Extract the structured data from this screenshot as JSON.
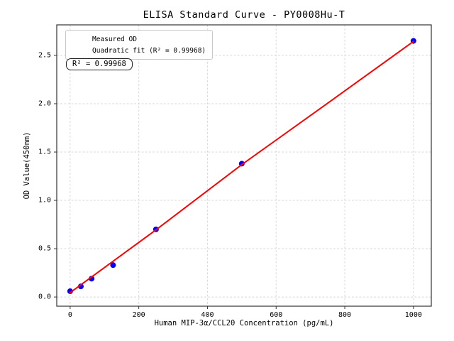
{
  "chart_data": {
    "type": "scatter",
    "title": "ELISA Standard Curve - PY0008Hu-T",
    "xlabel": "Human MIP-3α/CCL20 Concentration (pg/mL)",
    "ylabel": "OD Value(450nm)",
    "x_ticks": [
      0,
      200,
      400,
      600,
      800,
      1000
    ],
    "y_ticks": [
      0.0,
      0.5,
      1.0,
      1.5,
      2.0,
      2.5
    ],
    "xlim": [
      -39,
      1052
    ],
    "ylim": [
      -0.095,
      2.816
    ],
    "grid": true,
    "grid_color": "#d8d8d8",
    "axis_color": "#333333",
    "legend": {
      "position": "upper-left",
      "entries": [
        {
          "label": "Measured OD",
          "marker": "circle",
          "color": "#0000ff"
        },
        {
          "label": "Quadratic fit (R² = 0.99968)",
          "marker": "line",
          "color": "#ff0000"
        }
      ]
    },
    "annotation": "R² = 0.99968",
    "series": [
      {
        "name": "Measured OD",
        "type": "scatter",
        "color": "#0000ff",
        "points": [
          [
            0,
            0.06
          ],
          [
            31.2,
            0.11
          ],
          [
            62.5,
            0.19
          ],
          [
            125,
            0.33
          ],
          [
            250,
            0.7
          ],
          [
            500,
            1.38
          ],
          [
            1000,
            2.65
          ]
        ]
      },
      {
        "name": "Quadratic fit",
        "type": "line",
        "color": "#ff0000",
        "points": [
          [
            0,
            0.045
          ],
          [
            250,
            0.695
          ],
          [
            500,
            1.37
          ],
          [
            750,
            2.005
          ],
          [
            1000,
            2.645
          ]
        ]
      }
    ]
  }
}
